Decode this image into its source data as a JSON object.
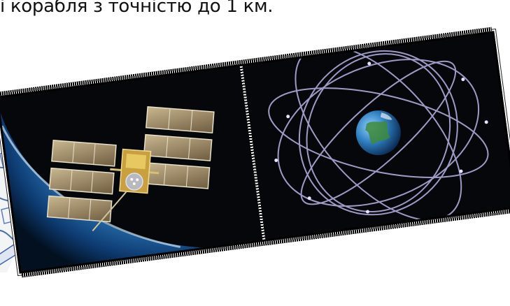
{
  "caption": {
    "text": "і корабля з точністю до 1 км."
  },
  "images": {
    "left": {
      "icon": "gps-satellite-over-earth-icon"
    },
    "right": {
      "icon": "satellite-orbits-globe-icon"
    },
    "side": {
      "icon": "partial-illustration-icon"
    }
  },
  "colors": {
    "space": "#06070a",
    "earth_blue": "#2f7fc0",
    "orbit": "#b9b6e8",
    "panel": "#9c8a6a"
  }
}
